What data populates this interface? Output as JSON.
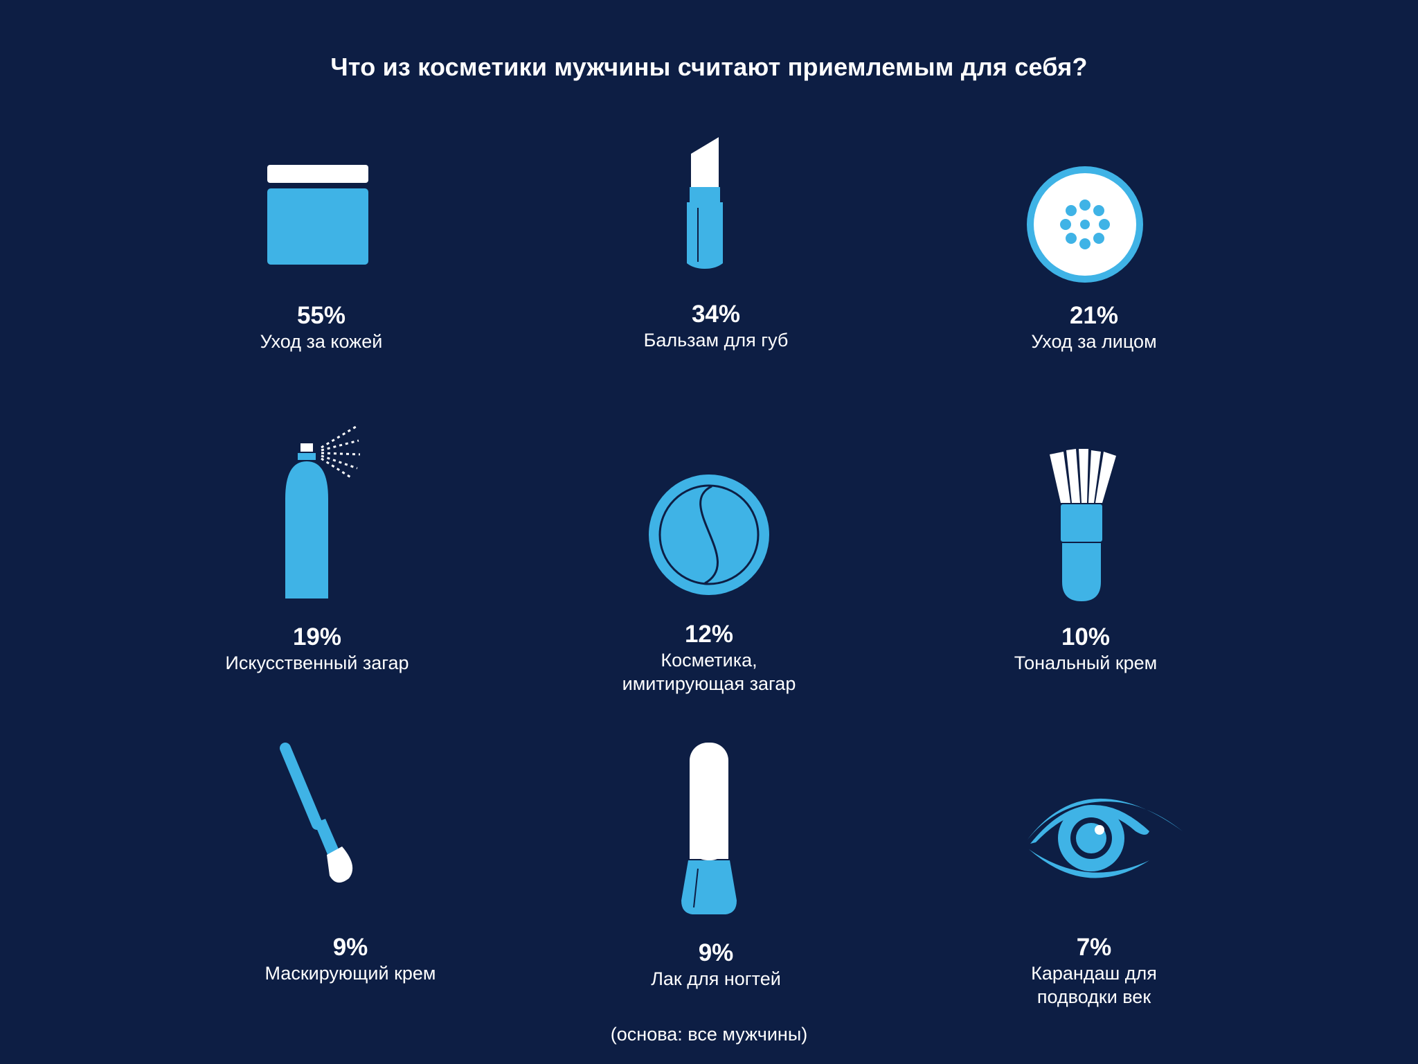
{
  "colors": {
    "background": "#0d1e44",
    "accent": "#3fb3e6",
    "text": "#ffffff"
  },
  "chart_data": {
    "type": "table",
    "title": "Что из косметики мужчины считают приемлемым для себя?",
    "note": "(основа: все мужчины)",
    "unit": "%",
    "items": [
      {
        "value": 55,
        "value_label": "55%",
        "label": "Уход за кожей",
        "icon": "cream-jar-icon"
      },
      {
        "value": 34,
        "value_label": "34%",
        "label": "Бальзам для губ",
        "icon": "lipstick-icon"
      },
      {
        "value": 21,
        "value_label": "21%",
        "label": "Уход за лицом",
        "icon": "face-care-icon"
      },
      {
        "value": 19,
        "value_label": "19%",
        "label": "Искусственный загар",
        "icon": "spray-can-icon"
      },
      {
        "value": 12,
        "value_label": "12%",
        "label": "Косметика, имитирующая загар",
        "label_lines": [
          "Косметика,",
          "имитирующая загар"
        ],
        "icon": "bronzer-compact-icon"
      },
      {
        "value": 10,
        "value_label": "10%",
        "label": "Тональный крем",
        "icon": "foundation-brush-icon"
      },
      {
        "value": 9,
        "value_label": "9%",
        "label": "Маскирующий крем",
        "icon": "concealer-brush-icon"
      },
      {
        "value": 9,
        "value_label": "9%",
        "label": "Лак для ногтей",
        "icon": "nail-polish-icon"
      },
      {
        "value": 7,
        "value_label": "7%",
        "label": "Карандаш для подводки век",
        "label_lines": [
          "Карандаш для",
          "подводки век"
        ],
        "icon": "eye-icon"
      }
    ]
  }
}
